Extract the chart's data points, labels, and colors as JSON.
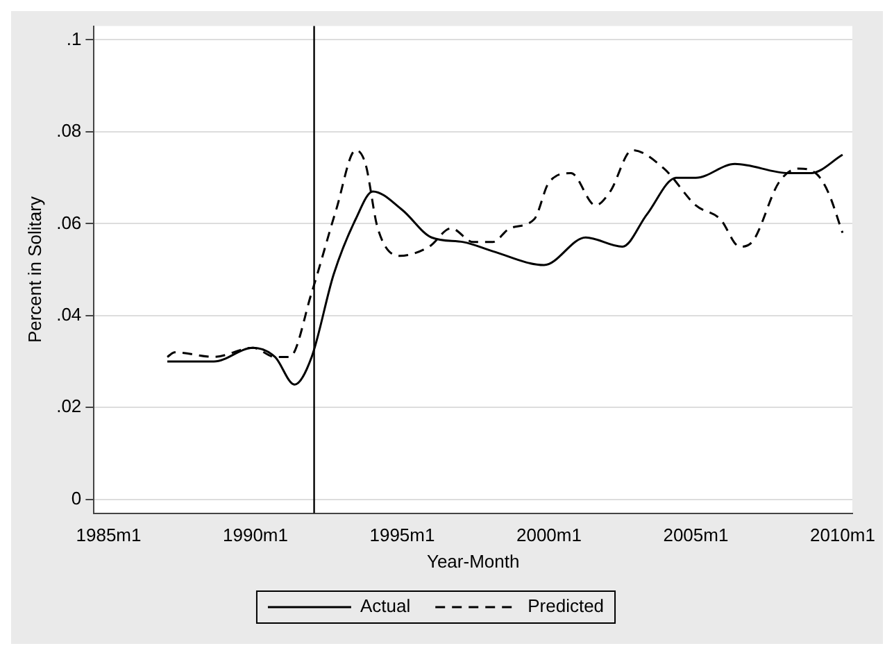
{
  "chart_data": {
    "type": "line",
    "xlabel": "Year-Month",
    "ylabel": "Percent in Solitary",
    "xlim": [
      "1984-07",
      "2010-05"
    ],
    "ylim": [
      -0.003,
      0.103
    ],
    "xticks": [
      {
        "value": "1985-01",
        "label": "1985m1"
      },
      {
        "value": "1990-01",
        "label": "1990m1"
      },
      {
        "value": "1995-01",
        "label": "1995m1"
      },
      {
        "value": "2000-01",
        "label": "2000m1"
      },
      {
        "value": "2005-01",
        "label": "2005m1"
      },
      {
        "value": "2010-01",
        "label": "2010m1"
      }
    ],
    "yticks": [
      0,
      {
        "value": 0.02,
        "label": ".02"
      },
      {
        "value": 0.04,
        "label": ".04"
      },
      {
        "value": 0.06,
        "label": ".06"
      },
      {
        "value": 0.08,
        "label": ".08"
      },
      {
        "value": 0.1,
        "label": ".1"
      }
    ],
    "grid": "y",
    "legend": "bottom",
    "marker": "none",
    "ref_lines": [
      {
        "axis": "x",
        "value": "1992-01",
        "color": "#000000"
      }
    ],
    "series": [
      {
        "name": "Actual",
        "color": "#000000",
        "line_style": "solid",
        "x": [
          "1987-01",
          "1988-08",
          "1989-12",
          "1990-09",
          "1991-05",
          "1991-12",
          "1992-09",
          "1993-06",
          "1994-01",
          "1995-01",
          "1996-01",
          "1997-02",
          "1998-02",
          "1999-11",
          "2001-04",
          "2002-07",
          "2003-05",
          "2004-05",
          "2005-01",
          "2006-05",
          "2008-03",
          "2008-12",
          "2010-01"
        ],
        "values": [
          0.03,
          0.03,
          0.033,
          0.031,
          0.025,
          0.031,
          0.049,
          0.061,
          0.067,
          0.063,
          0.057,
          0.056,
          0.054,
          0.051,
          0.057,
          0.055,
          0.062,
          0.07,
          0.07,
          0.073,
          0.071,
          0.071,
          0.075
        ]
      },
      {
        "name": "Predicted",
        "color": "#000000",
        "line_style": "dashed",
        "x": [
          "1987-01",
          "1987-04",
          "1988-08",
          "1989-12",
          "1990-09",
          "1991-03",
          "1991-12",
          "1992-10",
          "1993-06",
          "1993-10",
          "1994-03",
          "1994-12",
          "1995-12",
          "1996-09",
          "1997-06",
          "1998-02",
          "1998-09",
          "1999-07",
          "2000-01",
          "2000-10",
          "2001-08",
          "2002-02",
          "2002-11",
          "2003-12",
          "2005-01",
          "2005-11",
          "2006-07",
          "2006-12",
          "2007-11",
          "2008-07",
          "2009-02",
          "2009-07",
          "2010-01"
        ],
        "values": [
          0.031,
          0.032,
          0.031,
          0.033,
          0.031,
          0.031,
          0.045,
          0.063,
          0.076,
          0.073,
          0.059,
          0.053,
          0.055,
          0.059,
          0.056,
          0.056,
          0.059,
          0.061,
          0.069,
          0.071,
          0.064,
          0.067,
          0.076,
          0.072,
          0.064,
          0.061,
          0.055,
          0.056,
          0.069,
          0.072,
          0.071,
          0.067,
          0.058
        ]
      }
    ]
  }
}
